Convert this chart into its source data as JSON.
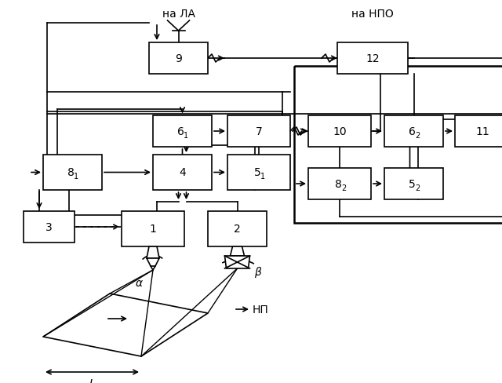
{
  "bg_color": "#ffffff",
  "title_la": "на ЛА",
  "title_npo": "на НПО",
  "boxes": {
    "9": [
      190,
      55,
      75,
      40
    ],
    "6_1": [
      195,
      148,
      75,
      40
    ],
    "7": [
      290,
      148,
      80,
      40
    ],
    "8_1": [
      55,
      198,
      75,
      45
    ],
    "4": [
      195,
      198,
      75,
      45
    ],
    "5_1": [
      290,
      198,
      80,
      45
    ],
    "3": [
      30,
      270,
      65,
      40
    ],
    "1": [
      155,
      270,
      80,
      45
    ],
    "2": [
      265,
      270,
      75,
      45
    ],
    "12": [
      430,
      55,
      90,
      40
    ],
    "10": [
      393,
      148,
      80,
      40
    ],
    "6_2": [
      490,
      148,
      75,
      40
    ],
    "11": [
      580,
      148,
      70,
      40
    ],
    "8_2": [
      393,
      215,
      80,
      40
    ],
    "5_2": [
      490,
      215,
      75,
      40
    ]
  }
}
